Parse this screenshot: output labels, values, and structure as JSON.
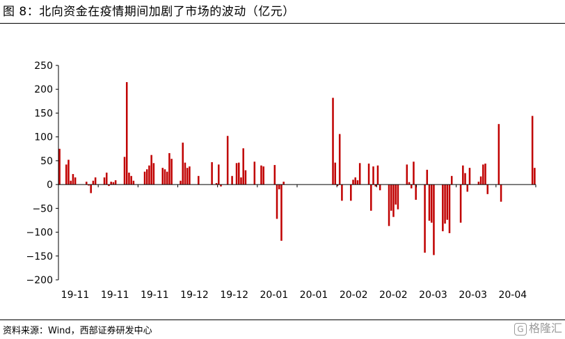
{
  "title": "图 8：北向资金在疫情期间加剧了市场的波动（亿元）",
  "source": "资料来源：Wind，西部证券研发中心",
  "watermark": "格隆汇",
  "chart_data": {
    "type": "bar",
    "bar_color": "#c00000",
    "ylim": [
      -200,
      250
    ],
    "yticks": [
      250,
      200,
      150,
      100,
      50,
      0,
      -50,
      -100,
      -150,
      -200
    ],
    "xtick_labels": [
      "19-11",
      "19-11",
      "19-11",
      "19-12",
      "19-12",
      "20-01",
      "20-01",
      "20-02",
      "20-02",
      "20-03",
      "20-03",
      "20-04"
    ],
    "values": [
      75,
      0,
      0,
      42,
      52,
      8,
      22,
      15,
      0,
      0,
      0,
      0,
      6,
      -2,
      -18,
      8,
      15,
      0,
      0,
      0,
      15,
      25,
      -3,
      6,
      5,
      9,
      0,
      0,
      0,
      58,
      215,
      25,
      18,
      8,
      0,
      0,
      0,
      0,
      27,
      32,
      40,
      62,
      45,
      0,
      0,
      0,
      35,
      32,
      27,
      66,
      54,
      0,
      0,
      0,
      8,
      88,
      46,
      35,
      38,
      0,
      0,
      0,
      18,
      0,
      0,
      0,
      0,
      0,
      47,
      0,
      3,
      42,
      -4,
      0,
      0,
      102,
      0,
      18,
      0,
      45,
      46,
      15,
      76,
      30,
      0,
      0,
      0,
      48,
      0,
      0,
      40,
      38,
      0,
      0,
      0,
      0,
      41,
      -72,
      -10,
      -118,
      6,
      0,
      0,
      0,
      0,
      0,
      0,
      0,
      0,
      0,
      0,
      0,
      0,
      0,
      0,
      0,
      0,
      0,
      0,
      0,
      0,
      0,
      182,
      46,
      -3,
      106,
      -34,
      0,
      0,
      0,
      -34,
      10,
      15,
      9,
      45,
      0,
      0,
      0,
      44,
      -55,
      38,
      -4,
      40,
      -12,
      0,
      0,
      0,
      -87,
      -55,
      -68,
      -42,
      -52,
      0,
      0,
      0,
      42,
      5,
      -8,
      48,
      -32,
      0,
      0,
      0,
      -143,
      31,
      -76,
      -80,
      -148,
      0,
      0,
      0,
      -98,
      -82,
      -74,
      -102,
      18,
      0,
      0,
      0,
      -80,
      40,
      24,
      -15,
      35,
      0,
      0,
      0,
      6,
      17,
      42,
      44,
      -20,
      0,
      0,
      0,
      0,
      127,
      -36,
      0,
      0,
      0,
      0,
      0,
      0,
      0,
      0,
      0,
      0,
      0,
      0,
      0,
      144,
      35
    ]
  }
}
